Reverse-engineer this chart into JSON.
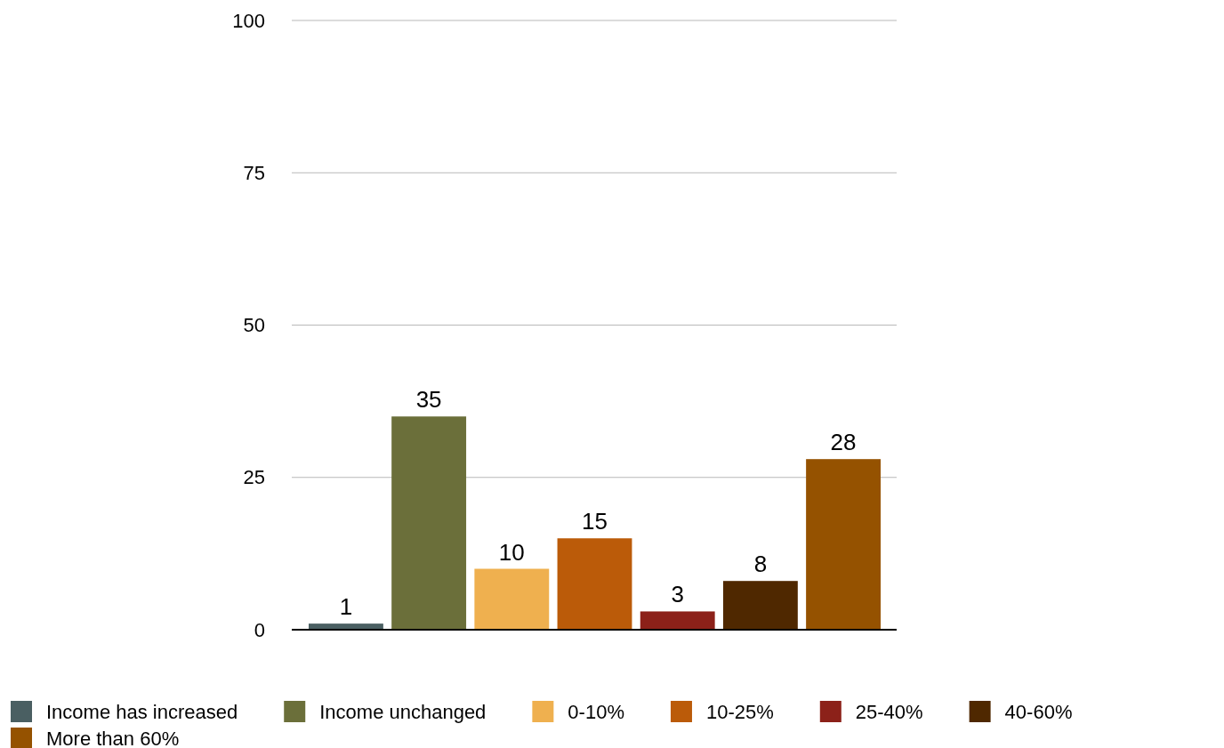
{
  "chart_data": {
    "type": "bar",
    "categories": [
      null
    ],
    "ylim": [
      0,
      100
    ],
    "yticks": [
      0,
      25,
      50,
      75,
      100
    ],
    "grid": "y",
    "legend": "bottom",
    "data_labels": true,
    "series": [
      {
        "name": "Income has increased",
        "color": "#4a5f62",
        "values": [
          1
        ]
      },
      {
        "name": "Income unchanged",
        "color": "#6b6f3a",
        "values": [
          35
        ]
      },
      {
        "name": "0-10%",
        "color": "#efb04f",
        "values": [
          10
        ]
      },
      {
        "name": "10-25%",
        "color": "#bb5b09",
        "values": [
          15
        ]
      },
      {
        "name": "25-40%",
        "color": "#8c2119",
        "values": [
          3
        ]
      },
      {
        "name": "40-60%",
        "color": "#4f2800",
        "values": [
          8
        ]
      },
      {
        "name": "More than 60%",
        "color": "#955200",
        "values": [
          28
        ]
      }
    ]
  }
}
